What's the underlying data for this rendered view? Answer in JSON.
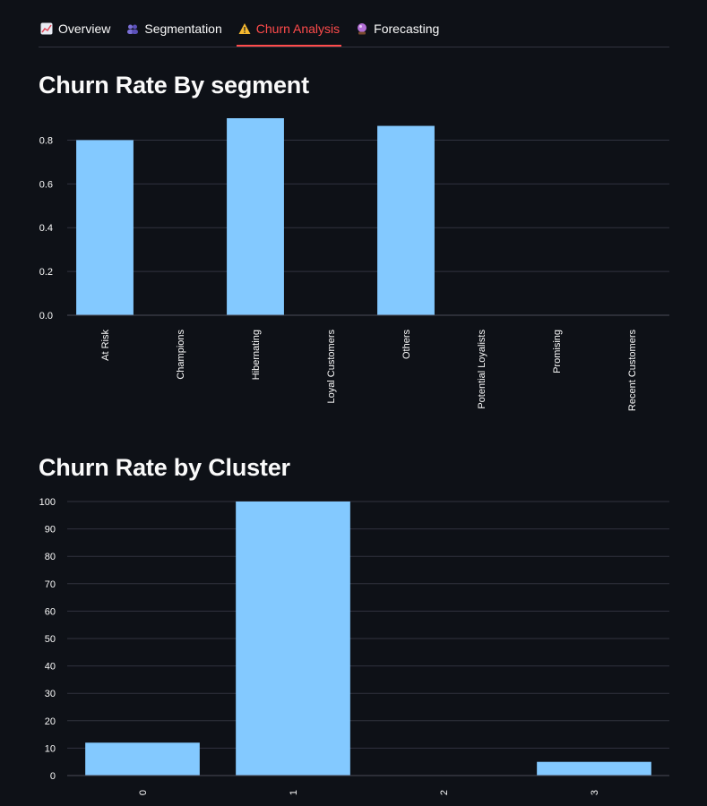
{
  "tabs": [
    {
      "label": "Overview",
      "icon": "chart-increasing-icon",
      "active": false
    },
    {
      "label": "Segmentation",
      "icon": "busts-icon",
      "active": false
    },
    {
      "label": "Churn Analysis",
      "icon": "warning-icon",
      "active": true
    },
    {
      "label": "Forecasting",
      "icon": "crystal-ball-icon",
      "active": false
    }
  ],
  "colors": {
    "background": "#0e1117",
    "bar": "#83c9ff",
    "grid": "#31333f",
    "active_tab": "#ff4b4b"
  },
  "section1": {
    "title": "Churn Rate By segment"
  },
  "section2": {
    "title": "Churn Rate by Cluster"
  },
  "chart_data": [
    {
      "type": "bar",
      "categories": [
        "At Risk",
        "Champions",
        "Hibernating",
        "Loyal Customers",
        "Others",
        "Potential Loyalists",
        "Promising",
        "Recent Customers"
      ],
      "values": [
        0.8,
        0,
        0.9,
        0,
        0.865,
        0,
        0,
        0
      ],
      "yticks": [
        "0.0",
        "0.2",
        "0.4",
        "0.6",
        "0.8"
      ],
      "ylim": [
        0,
        0.9
      ],
      "grid": true,
      "xlabel": "",
      "ylabel": ""
    },
    {
      "type": "bar",
      "categories": [
        "0",
        "1",
        "2",
        "3"
      ],
      "values": [
        12,
        100,
        0,
        5
      ],
      "yticks": [
        "0",
        "10",
        "20",
        "30",
        "40",
        "50",
        "60",
        "70",
        "80",
        "90",
        "100"
      ],
      "ylim": [
        0,
        100
      ],
      "grid": true,
      "xlabel": "",
      "ylabel": ""
    }
  ]
}
